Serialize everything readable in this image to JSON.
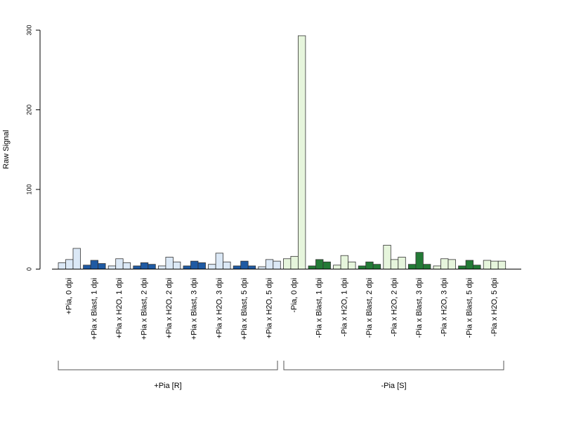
{
  "chart_data": {
    "type": "bar",
    "ylabel": "Raw Signal",
    "ylim": [
      0,
      300
    ],
    "yticks": [
      0,
      100,
      200,
      300
    ],
    "colors": {
      "plus_light": "#dbe8f6",
      "plus_dark": "#1f5aa3",
      "minus_light": "#e6f5dc",
      "minus_dark": "#237a36"
    },
    "categories": [
      "+Pia, 0 dpi",
      "+Pia x Blast, 1 dpi",
      "+Pia x H2O, 1 dpi",
      "+Pia x Blast, 2 dpi",
      "+Pia x H2O, 2 dpi",
      "+Pia x Blast, 3 dpi",
      "+Pia x H2O, 3 dpi",
      "+Pia x Blast, 5 dpi",
      "+Pia x H2O, 5 dpi",
      "-Pia, 0 dpi",
      "-Pia x Blast, 1 dpi",
      "-Pia x H2O, 1 dpi",
      "-Pia x Blast, 2 dpi",
      "-Pia x H2O, 2 dpi",
      "-Pia x Blast, 3 dpi",
      "-Pia x H2O, 3 dpi",
      "-Pia x Blast, 5 dpi",
      "-Pia x H2O, 5 dpi"
    ],
    "fill": [
      "plus_light",
      "plus_dark",
      "plus_light",
      "plus_dark",
      "plus_light",
      "plus_dark",
      "plus_light",
      "plus_dark",
      "plus_light",
      "minus_light",
      "minus_dark",
      "minus_light",
      "minus_dark",
      "minus_light",
      "minus_dark",
      "minus_light",
      "minus_dark",
      "minus_light"
    ],
    "values": [
      [
        8,
        12,
        26
      ],
      [
        5,
        11,
        7
      ],
      [
        4,
        13,
        8
      ],
      [
        4,
        8,
        6
      ],
      [
        4,
        15,
        9
      ],
      [
        4,
        10,
        8
      ],
      [
        6,
        20,
        9
      ],
      [
        4,
        10,
        4
      ],
      [
        3,
        12,
        10
      ],
      [
        13,
        16,
        293
      ],
      [
        4,
        12,
        9
      ],
      [
        5,
        17,
        9
      ],
      [
        4,
        9,
        6
      ],
      [
        30,
        12,
        15
      ],
      [
        6,
        21,
        6
      ],
      [
        4,
        13,
        12
      ],
      [
        4,
        11,
        5
      ],
      [
        11,
        10,
        10
      ]
    ],
    "groups": [
      {
        "label": "+Pia [R]",
        "from": 0,
        "to": 8
      },
      {
        "label": "-Pia [S]",
        "from": 9,
        "to": 17
      }
    ]
  }
}
